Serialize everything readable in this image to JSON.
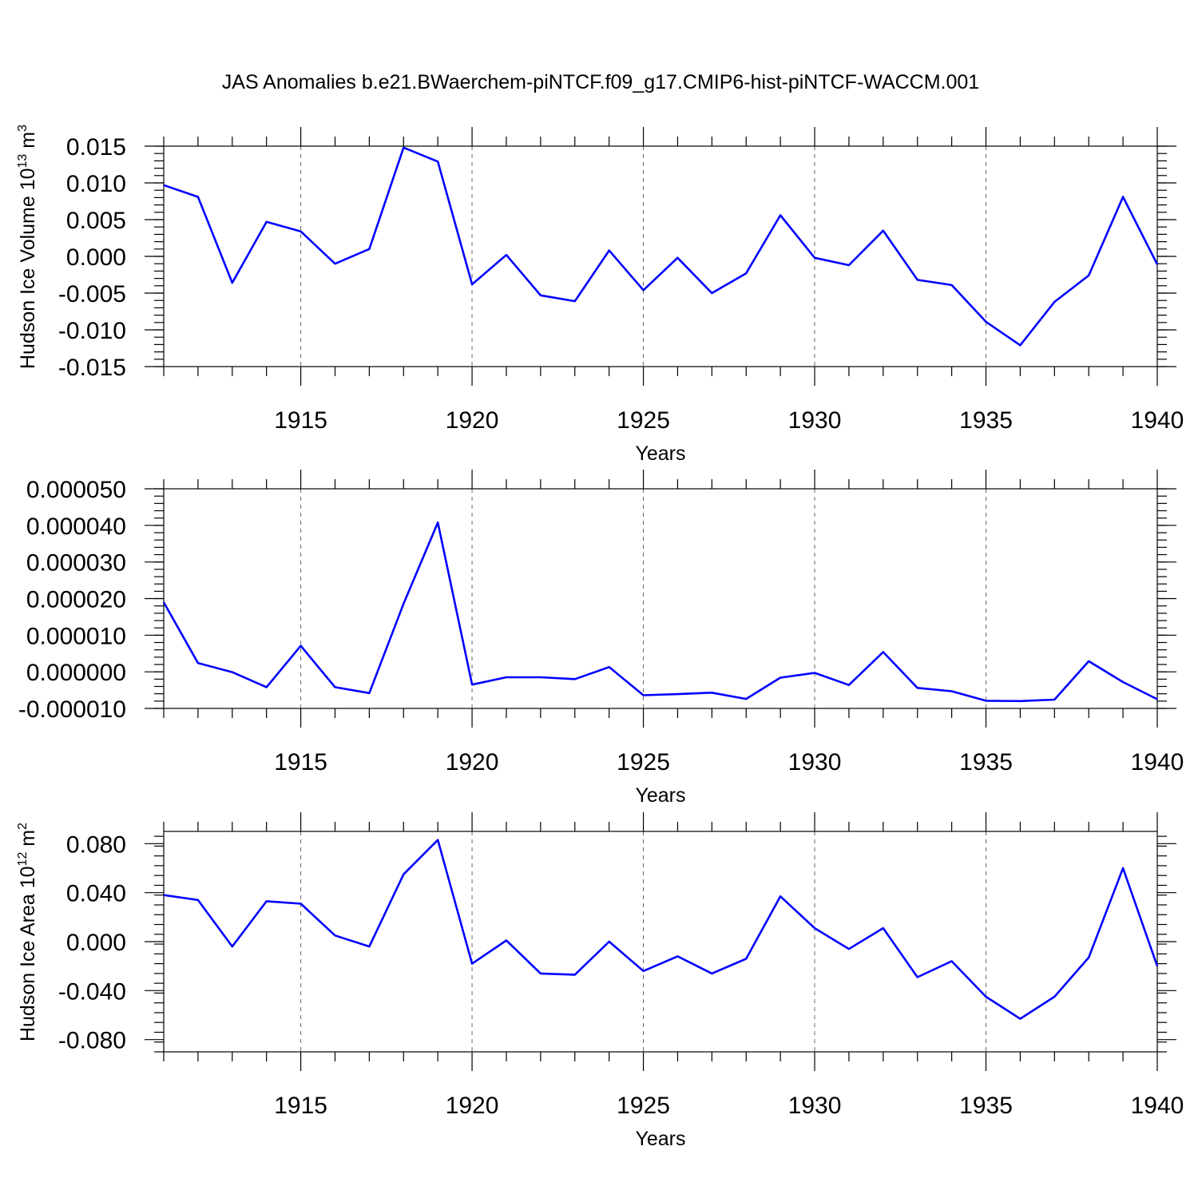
{
  "title": "JAS Anomalies b.e21.BWaerchem-piNTCF.f09_g17.CMIP6-hist-piNTCF-WACCM.001",
  "colors": {
    "line": "#0000ff",
    "frame": "#000000",
    "grid": "#666666"
  },
  "chart_data": [
    {
      "type": "line",
      "ylabel": "Hudson Ice Volume 10",
      "ylabel_exp": "13",
      "ylabel_unit": " m",
      "ylabel_unit_exp": "3",
      "xlabel": "Years",
      "xlim": [
        1911,
        1940
      ],
      "ylim": [
        -0.015,
        0.015
      ],
      "yticks": [
        -0.015,
        -0.01,
        -0.005,
        0.0,
        0.005,
        0.01,
        0.015
      ],
      "ytick_labels": [
        "-0.015",
        "-0.010",
        "-0.005",
        "0.000",
        "0.005",
        "0.010",
        "0.015"
      ],
      "xticks": [
        1915,
        1920,
        1925,
        1930,
        1935,
        1940
      ],
      "xtick_labels": [
        "1915",
        "1920",
        "1925",
        "1930",
        "1935",
        "1940"
      ],
      "grid": "dashed vertical at major x ticks",
      "x": [
        1911,
        1912,
        1913,
        1914,
        1915,
        1916,
        1917,
        1918,
        1919,
        1920,
        1921,
        1922,
        1923,
        1924,
        1925,
        1926,
        1927,
        1928,
        1929,
        1930,
        1931,
        1932,
        1933,
        1934,
        1935,
        1936,
        1937,
        1938,
        1939,
        1940
      ],
      "series": [
        {
          "values": [
            0.0097,
            0.0081,
            -0.0036,
            0.0047,
            0.0034,
            -0.001,
            0.001,
            0.0148,
            0.0129,
            -0.0038,
            0.0002,
            -0.0053,
            -0.0061,
            0.0008,
            -0.0046,
            -0.0002,
            -0.005,
            -0.0023,
            0.0056,
            -0.0002,
            -0.0012,
            0.0035,
            -0.0032,
            -0.0039,
            -0.0089,
            -0.0121,
            -0.0062,
            -0.0026,
            0.0081,
            -0.0011
          ]
        }
      ]
    },
    {
      "type": "line",
      "ylabel": "",
      "xlabel": "Years",
      "xlim": [
        1911,
        1940
      ],
      "ylim": [
        -1e-05,
        5e-05
      ],
      "yticks": [
        -1e-05,
        0.0,
        1e-05,
        2e-05,
        3e-05,
        4e-05,
        5e-05
      ],
      "ytick_labels": [
        "-0.000010",
        "0.000000",
        "0.000010",
        "0.000020",
        "0.000030",
        "0.000040",
        "0.000050"
      ],
      "xticks": [
        1915,
        1920,
        1925,
        1930,
        1935,
        1940
      ],
      "xtick_labels": [
        "1915",
        "1920",
        "1925",
        "1930",
        "1935",
        "1940"
      ],
      "grid": "dashed vertical at major x ticks",
      "x": [
        1911,
        1912,
        1913,
        1914,
        1915,
        1916,
        1917,
        1918,
        1919,
        1920,
        1921,
        1922,
        1923,
        1924,
        1925,
        1926,
        1927,
        1928,
        1929,
        1930,
        1931,
        1932,
        1933,
        1934,
        1935,
        1936,
        1937,
        1938,
        1939,
        1940
      ],
      "series": [
        {
          "values": [
            1.9e-05,
            2.4e-06,
            -1e-07,
            -4.2e-06,
            7.1e-06,
            -4.2e-06,
            -5.8e-06,
            1.86e-05,
            4.08e-05,
            -3.5e-06,
            -1.5e-06,
            -1.5e-06,
            -2e-06,
            1.3e-06,
            -6.4e-06,
            -6.1e-06,
            -5.7e-06,
            -7.4e-06,
            -1.6e-06,
            -3e-07,
            -3.6e-06,
            5.4e-06,
            -4.4e-06,
            -5.3e-06,
            -7.9e-06,
            -8e-06,
            -7.6e-06,
            2.9e-06,
            -2.8e-06,
            -7.5e-06
          ]
        }
      ]
    },
    {
      "type": "line",
      "ylabel": "Hudson Ice Area 10",
      "ylabel_exp": "12",
      "ylabel_unit": " m",
      "ylabel_unit_exp": "2",
      "xlabel": "Years",
      "xlim": [
        1911,
        1940
      ],
      "ylim": [
        -0.09,
        0.09
      ],
      "yticks": [
        -0.08,
        -0.04,
        0.0,
        0.04,
        0.08
      ],
      "ytick_labels": [
        "-0.080",
        "-0.040",
        "0.000",
        "0.040",
        "0.080"
      ],
      "xticks": [
        1915,
        1920,
        1925,
        1930,
        1935,
        1940
      ],
      "xtick_labels": [
        "1915",
        "1920",
        "1925",
        "1930",
        "1935",
        "1940"
      ],
      "grid": "dashed vertical at major x ticks",
      "x": [
        1911,
        1912,
        1913,
        1914,
        1915,
        1916,
        1917,
        1918,
        1919,
        1920,
        1921,
        1922,
        1923,
        1924,
        1925,
        1926,
        1927,
        1928,
        1929,
        1930,
        1931,
        1932,
        1933,
        1934,
        1935,
        1936,
        1937,
        1938,
        1939,
        1940
      ],
      "series": [
        {
          "values": [
            0.038,
            0.034,
            -0.004,
            0.033,
            0.031,
            0.005,
            -0.004,
            0.055,
            0.083,
            -0.018,
            0.001,
            -0.026,
            -0.027,
            0.0,
            -0.024,
            -0.012,
            -0.026,
            -0.014,
            0.037,
            0.011,
            -0.006,
            0.011,
            -0.029,
            -0.016,
            -0.045,
            -0.063,
            -0.045,
            -0.013,
            0.06,
            -0.02
          ]
        }
      ]
    }
  ]
}
